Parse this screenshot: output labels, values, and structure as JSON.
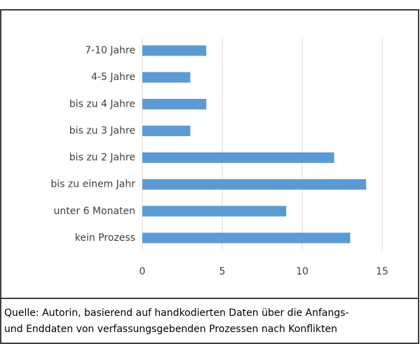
{
  "chart_data": {
    "type": "barh",
    "categories": [
      "7-10 Jahre",
      "4-5 Jahre",
      "bis zu 4 Jahre",
      "bis zu 3 Jahre",
      "bis zu 2 Jahre",
      "bis zu einem Jahr",
      "unter 6 Monaten",
      "kein Prozess"
    ],
    "values": [
      4,
      3,
      4,
      3,
      12,
      14,
      9,
      13
    ],
    "color": "#5b9bd5",
    "xlim": [
      0,
      15
    ],
    "xticks": [
      0,
      5,
      10,
      15
    ],
    "grid": true,
    "caption_lines": [
      "Quelle: Autorin, basierend auf handkodierten Daten über die Anfangs-",
      "und Enddaten von verfassungsgebenden Prozessen nach Konflikten"
    ]
  }
}
